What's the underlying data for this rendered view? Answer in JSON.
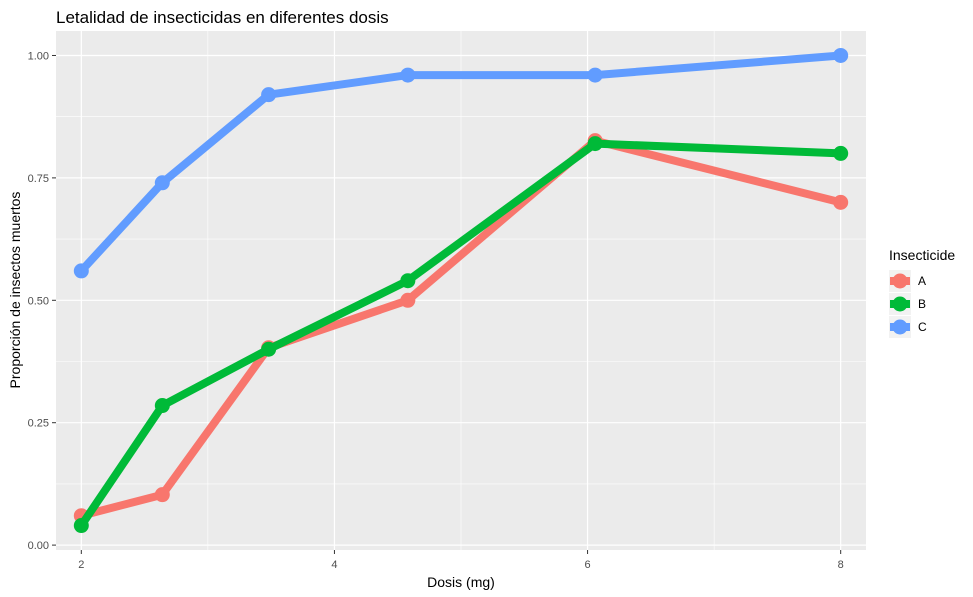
{
  "chart_data": {
    "type": "line",
    "title": "Letalidad de insecticidas en diferentes dosis",
    "xlabel": "Dosis (mg)",
    "ylabel": "Proporción de insectos muertos",
    "xlim": [
      1.8,
      8.2
    ],
    "ylim": [
      -0.01,
      1.05
    ],
    "x_ticks": [
      2,
      4,
      6,
      8
    ],
    "y_ticks": [
      0,
      0.25,
      0.5,
      0.75,
      1
    ],
    "x_tick_labels": [
      "2",
      "4",
      "6",
      "8"
    ],
    "y_tick_labels": [
      "0.00",
      "0.25",
      "0.50",
      "0.75",
      "1.00"
    ],
    "grid": true,
    "legend": {
      "title": "Insecticide",
      "position": "right"
    },
    "series": [
      {
        "name": "A",
        "color": "#F8766D",
        "points": [
          [
            2,
            0.06
          ],
          [
            2.64,
            0.103
          ],
          [
            3.48,
            0.403
          ],
          [
            4.58,
            0.5
          ],
          [
            6.06,
            0.826
          ],
          [
            8,
            0.7
          ]
        ]
      },
      {
        "name": "B",
        "color": "#00BA38",
        "points": [
          [
            2,
            0.04
          ],
          [
            2.64,
            0.285
          ],
          [
            3.48,
            0.4
          ],
          [
            4.58,
            0.54
          ],
          [
            6.06,
            0.82
          ],
          [
            8,
            0.8
          ]
        ]
      },
      {
        "name": "C",
        "color": "#619CFF",
        "points": [
          [
            2,
            0.56
          ],
          [
            2.64,
            0.74
          ],
          [
            3.48,
            0.92
          ],
          [
            4.58,
            0.96
          ],
          [
            6.06,
            0.96
          ],
          [
            8,
            1.0
          ]
        ]
      }
    ]
  }
}
